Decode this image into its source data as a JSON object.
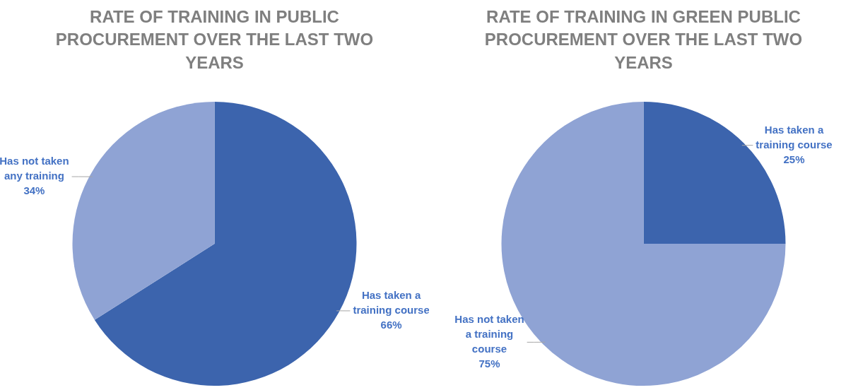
{
  "chart_data": [
    {
      "type": "pie",
      "title": "RATE OF TRAINING IN PUBLIC PROCUREMENT OVER THE LAST TWO YEARS",
      "categories": [
        "Has taken a training course",
        "Has not taken any training"
      ],
      "values": [
        66,
        34
      ],
      "colors": [
        "#3c64ad",
        "#8fa3d4"
      ],
      "value_labels": [
        "66%",
        "34%"
      ],
      "legend": false
    },
    {
      "type": "pie",
      "title": "RATE OF TRAINING IN GREEN PUBLIC PROCUREMENT OVER THE LAST TWO YEARS",
      "categories": [
        "Has taken a training course",
        "Has not taken a training course"
      ],
      "values": [
        25,
        75
      ],
      "colors": [
        "#3c64ad",
        "#8fa3d4"
      ],
      "value_labels": [
        "25%",
        "75%"
      ],
      "legend": false
    }
  ]
}
